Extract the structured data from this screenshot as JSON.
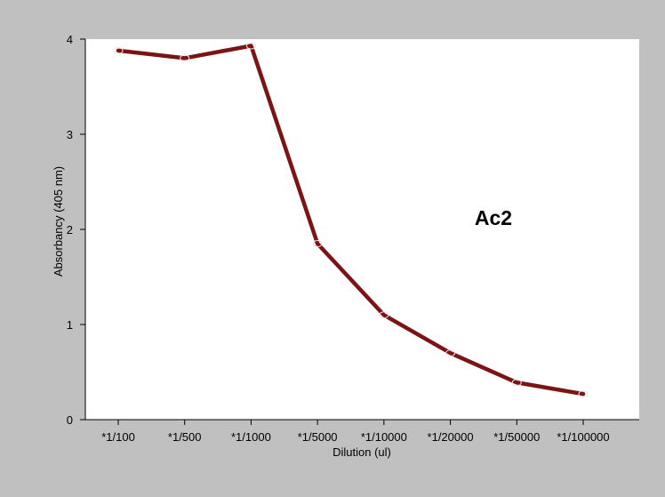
{
  "chart_data": {
    "type": "line",
    "categories": [
      "*1/100",
      "*1/500",
      "*1/1000",
      "*1/5000",
      "*1/10000",
      "*1/20000",
      "*1/50000",
      "*1/100000"
    ],
    "series": [
      {
        "values": [
          3.88,
          3.8,
          3.93,
          1.85,
          1.1,
          0.7,
          0.39,
          0.27
        ]
      }
    ],
    "xlabel": "Dilution (ul)",
    "ylabel": "Absorbancy (405 nm)",
    "ylim": [
      0,
      4
    ],
    "yticks": [
      0,
      1,
      2,
      3,
      4
    ],
    "annotation": "Ac2",
    "grid": false,
    "legend": "none",
    "colors": {
      "line": "#7b1515",
      "frame_background": "#c0c0c0",
      "plot_background": "#ffffff"
    }
  }
}
